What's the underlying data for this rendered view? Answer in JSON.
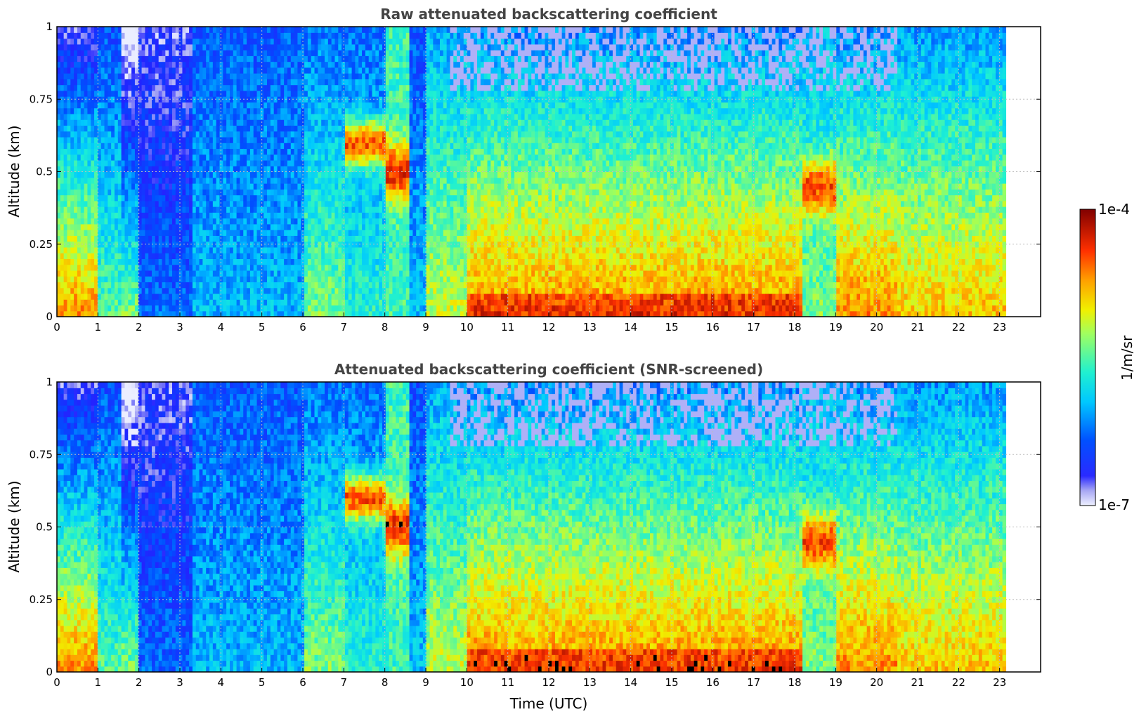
{
  "chart_data": [
    {
      "type": "heatmap",
      "title": "Raw attenuated backscattering coefficient",
      "xlabel": "",
      "ylabel": "Altitude (km)",
      "xlim": [
        0,
        24
      ],
      "ylim": [
        0,
        1
      ],
      "x_ticks": [
        "0",
        "1",
        "2",
        "3",
        "4",
        "5",
        "6",
        "7",
        "8",
        "9",
        "10",
        "11",
        "12",
        "13",
        "14",
        "15",
        "16",
        "17",
        "18",
        "19",
        "20",
        "21",
        "22",
        "23"
      ],
      "y_ticks": [
        "0",
        "0.25",
        "0.5",
        "0.75",
        "1"
      ],
      "grid": true,
      "data_end_hour": 23.15,
      "features": [
        {
          "start_hour": 0.0,
          "end_hour": 1.0,
          "description": "low-level aerosol, strong near 0-0.3 km"
        },
        {
          "start_hour": 2.0,
          "end_hour": 3.3,
          "description": "weak signal, blue"
        },
        {
          "start_hour": 7.0,
          "end_hour": 8.0,
          "description": "strong layer near 0.55-0.65 km"
        },
        {
          "start_hour": 10.0,
          "end_hour": 18.2,
          "description": "strong surface layer below 0.1 km"
        },
        {
          "start_hour": 18.3,
          "end_hour": 19.0,
          "description": "strong layer near 0.4-0.55 km"
        }
      ]
    },
    {
      "type": "heatmap",
      "title": "Attenuated backscattering coefficient (SNR-screened)",
      "xlabel": "Time (UTC)",
      "ylabel": "Altitude (km)",
      "xlim": [
        0,
        24
      ],
      "ylim": [
        0,
        1
      ],
      "x_ticks": [
        "0",
        "1",
        "2",
        "3",
        "4",
        "5",
        "6",
        "7",
        "8",
        "9",
        "10",
        "11",
        "12",
        "13",
        "14",
        "15",
        "16",
        "17",
        "18",
        "19",
        "20",
        "21",
        "22",
        "23"
      ],
      "y_ticks": [
        "0",
        "0.25",
        "0.5",
        "0.75",
        "1"
      ],
      "grid": true,
      "data_end_hour": 23.15,
      "saturated_color": "#000000"
    }
  ],
  "colorbar": {
    "label": "1/m/sr",
    "max_label": "1e-4",
    "min_label": "1e-7",
    "scale": "log",
    "colormap": "jet"
  }
}
